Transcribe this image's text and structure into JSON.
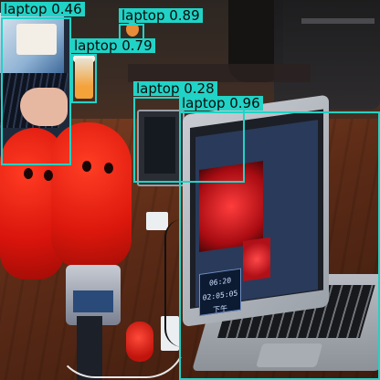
{
  "detections": [
    {
      "label": "laptop",
      "score": "0.46"
    },
    {
      "label": "laptop",
      "score": "0.89"
    },
    {
      "label": "laptop",
      "score": "0.79"
    },
    {
      "label": "laptop",
      "score": "0.28"
    },
    {
      "label": "laptop",
      "score": "0.96"
    }
  ],
  "screen": {
    "clock_time": "06:20",
    "clock_date": "02:05:05 下午"
  },
  "colors": {
    "box": "#21d3c6"
  }
}
